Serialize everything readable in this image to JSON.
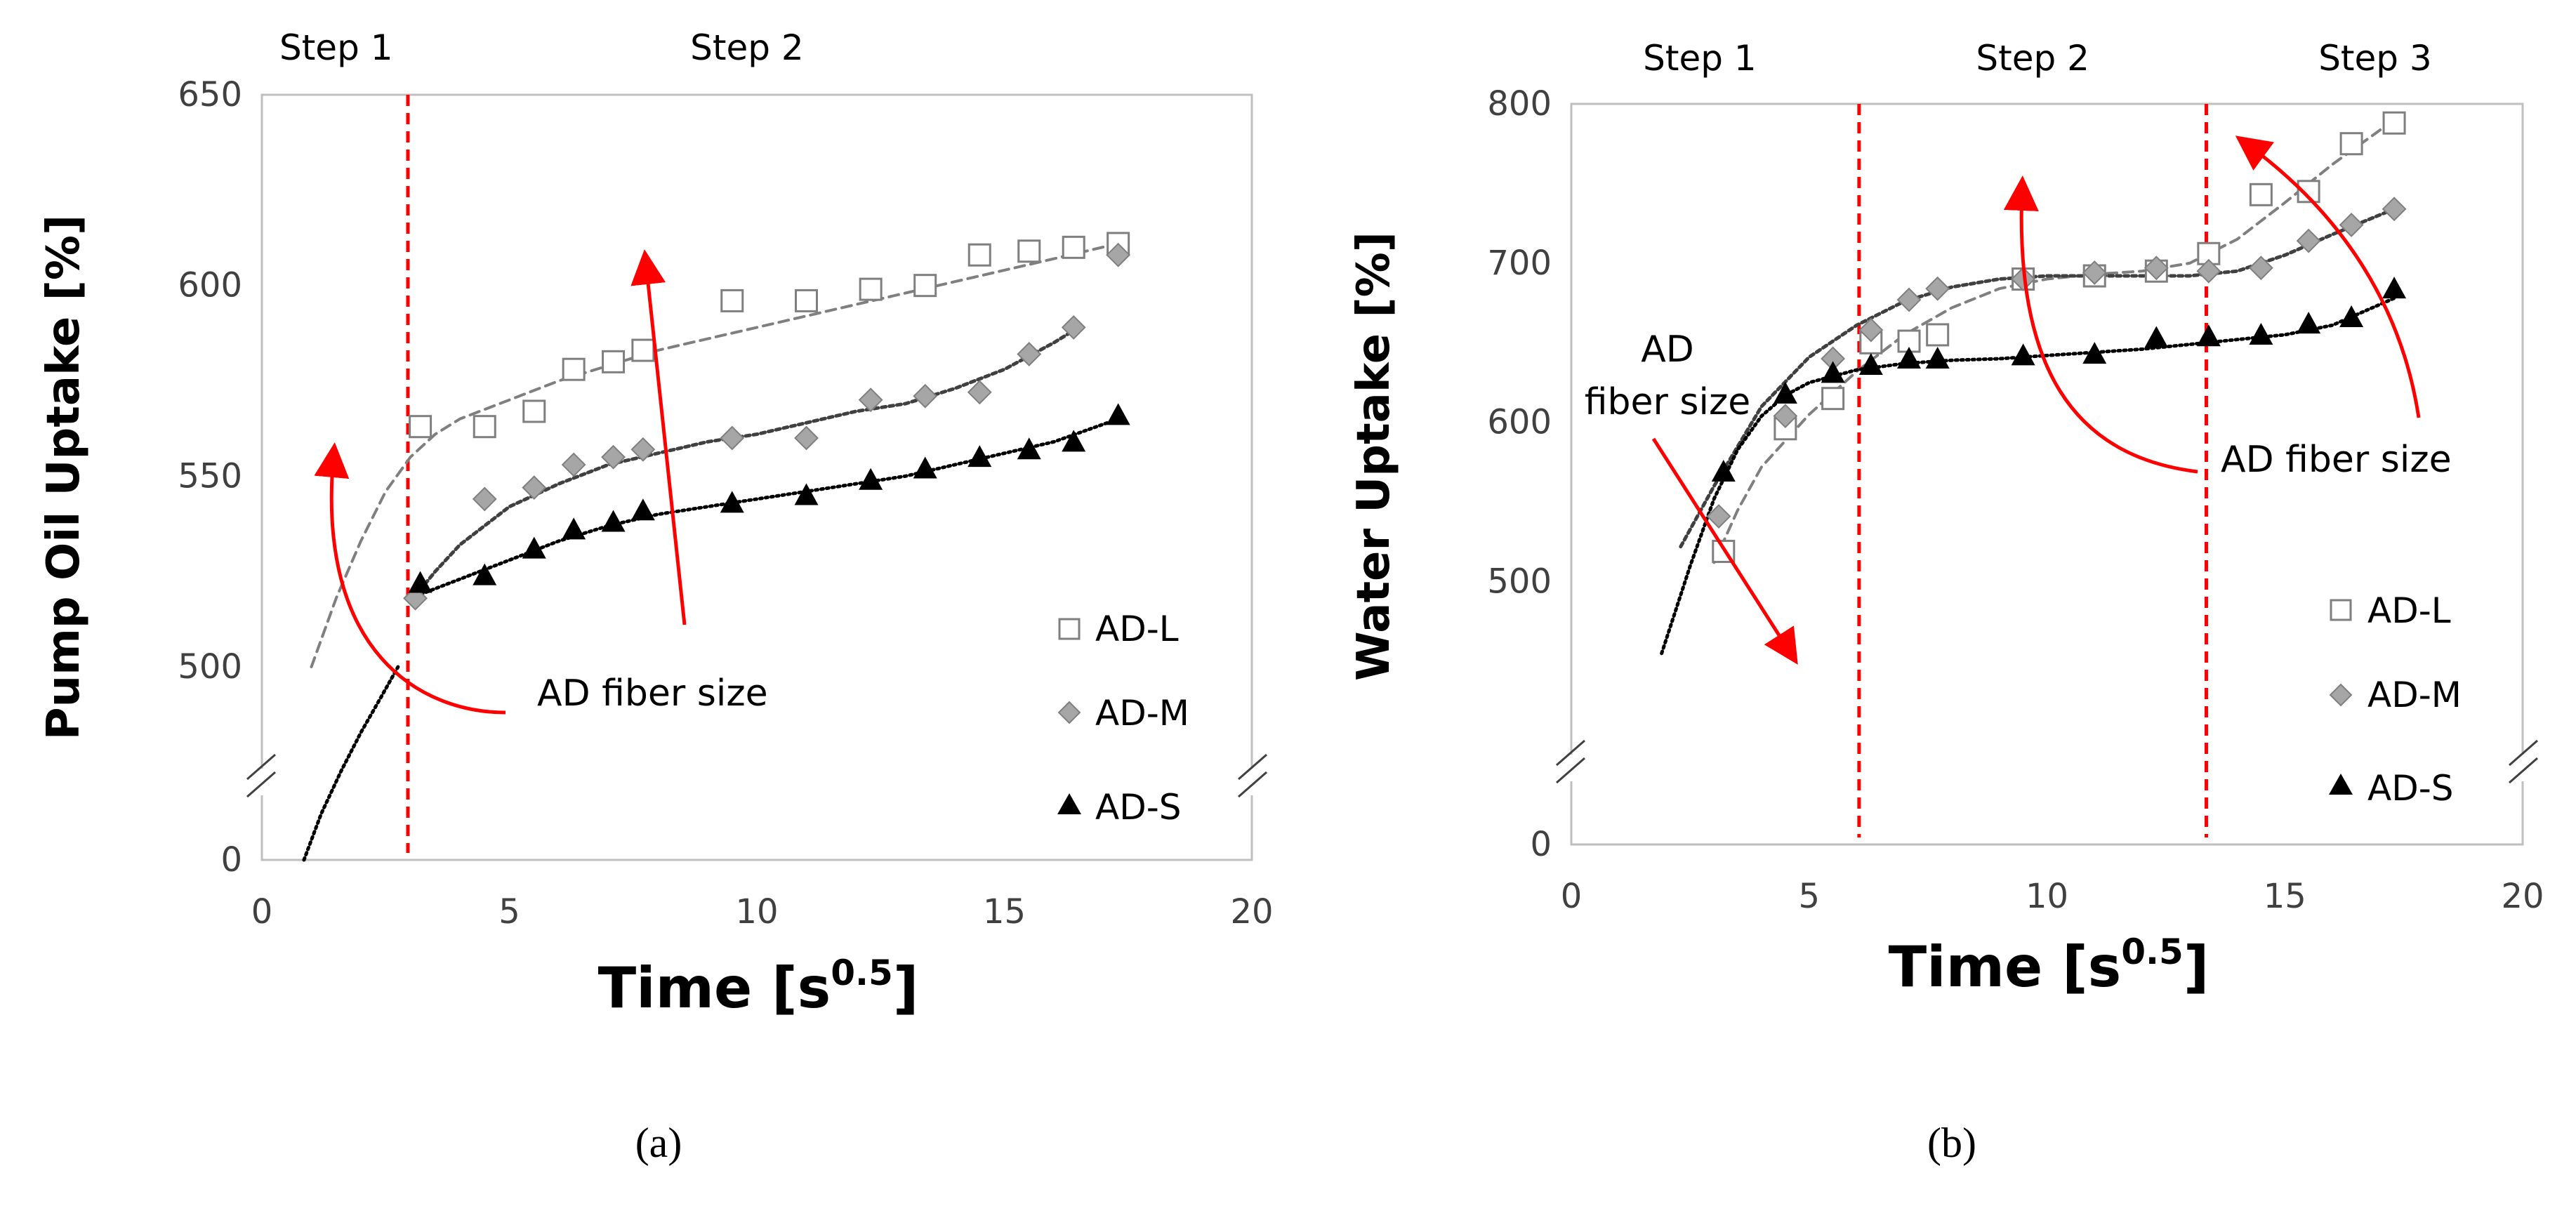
{
  "chart_data": [
    {
      "type": "scatter",
      "panel_label": "(a)",
      "xlabel": "Time [s",
      "xlabel_sup": "0.5",
      "xlabel_close": "]",
      "ylabel": "Pump Oil Uptake [%]",
      "xlim": [
        0,
        20
      ],
      "x_ticks": [
        0,
        5,
        10,
        15,
        20
      ],
      "y_ticks": [
        500,
        550,
        600,
        650
      ],
      "y_zero_label": 0,
      "ylim": [
        500,
        650
      ],
      "y_break_low": 0,
      "steps": [
        "Step 1",
        "Step 2"
      ],
      "step_label_x": [
        1.5,
        9.8
      ],
      "step_lines_x": [
        2.95
      ],
      "annotation": "AD fiber size",
      "annotation_x": 5.5,
      "annotation_y": 495,
      "series": [
        {
          "name": "AD-L",
          "marker": "square-open",
          "x": [
            3.2,
            4.5,
            5.5,
            6.3,
            7.1,
            7.7,
            9.5,
            11.0,
            12.3,
            13.4,
            14.5,
            15.5,
            16.4,
            17.3
          ],
          "values": [
            563,
            563,
            567,
            578,
            580,
            583,
            596,
            596,
            599,
            600,
            608,
            609,
            610,
            611
          ],
          "fit_x": [
            1.0,
            1.5,
            2.0,
            2.5,
            3.0,
            3.5,
            4.0,
            5.0,
            6.0,
            7.0,
            8.0,
            9.0,
            10.0,
            11.0,
            12.0,
            13.0,
            14.0,
            15.0,
            16.0,
            17.3
          ],
          "fit_y": [
            500,
            518,
            533,
            546,
            555,
            561,
            565,
            570,
            575,
            579,
            583,
            586,
            589,
            592,
            595,
            598,
            601,
            604,
            607,
            611
          ]
        },
        {
          "name": "AD-M",
          "marker": "diamond-filled",
          "x": [
            3.1,
            4.5,
            5.5,
            6.3,
            7.1,
            7.7,
            9.5,
            11.0,
            12.3,
            13.4,
            14.5,
            15.5,
            16.4,
            17.3
          ],
          "values": [
            518,
            544,
            547,
            553,
            555,
            557,
            560,
            560,
            570,
            571,
            572,
            582,
            589,
            608
          ],
          "fit_x": [
            3.0,
            3.5,
            4.0,
            5.0,
            6.0,
            7.0,
            8.0,
            9.0,
            10.0,
            11.0,
            12.0,
            13.0,
            14.0,
            15.0,
            16.0,
            16.5
          ],
          "fit_y": [
            517,
            525,
            532,
            542,
            548,
            553,
            556,
            559,
            561,
            564,
            567,
            569,
            573,
            578,
            585,
            589
          ]
        },
        {
          "name": "AD-S",
          "marker": "triangle-filled",
          "x": [
            3.2,
            4.5,
            5.5,
            6.3,
            7.1,
            7.7,
            9.5,
            11.0,
            12.3,
            13.4,
            14.5,
            15.5,
            16.4,
            17.3
          ],
          "values": [
            522,
            524,
            531,
            536,
            538,
            541,
            543,
            545,
            549,
            552,
            555,
            557,
            559,
            566
          ],
          "fit_x": [
            3.0,
            4.0,
            5.0,
            6.0,
            7.0,
            8.0,
            9.0,
            10.0,
            11.0,
            12.0,
            13.0,
            14.0,
            15.0,
            16.0,
            17.3
          ],
          "fit_y": [
            518,
            523,
            528,
            533,
            537,
            540,
            542,
            544,
            546,
            548,
            550,
            553,
            556,
            559,
            565
          ]
        }
      ],
      "below_break_fit_x": [
        0.85,
        1.2,
        1.6,
        2.0,
        2.4,
        2.75
      ],
      "below_break_fit_y": [
        0,
        120,
        230,
        330,
        420,
        500
      ]
    },
    {
      "type": "scatter",
      "panel_label": "(b)",
      "xlabel": "Time [s",
      "xlabel_sup": "0.5",
      "xlabel_close": "]",
      "ylabel": "Water Uptake [%]",
      "xlim": [
        0,
        20
      ],
      "x_ticks": [
        0,
        5,
        10,
        15,
        20
      ],
      "y_ticks": [
        500,
        600,
        700,
        800
      ],
      "y_zero_label": 0,
      "ylim": [
        450,
        800
      ],
      "y_break_low": 0,
      "steps": [
        "Step 1",
        "Step 2",
        "Step 3"
      ],
      "step_label_x": [
        2.7,
        9.7,
        16.9
      ],
      "step_lines_x": [
        6.05,
        13.35
      ],
      "annotation": "AD fiber size",
      "annotation_2_line1": "AD",
      "annotation_2_line2": "fiber size",
      "series": [
        {
          "name": "AD-L",
          "marker": "square-open",
          "x": [
            3.2,
            4.5,
            5.5,
            6.3,
            7.1,
            7.7,
            9.5,
            11.0,
            12.3,
            13.4,
            14.5,
            15.5,
            16.4,
            17.3
          ],
          "values": [
            519,
            596,
            615,
            650,
            651,
            655,
            690,
            692,
            695,
            706,
            743,
            745,
            775,
            788
          ],
          "fit_x": [
            3.0,
            3.5,
            4.0,
            5.0,
            6.0,
            7.0,
            8.0,
            9.0,
            10.0,
            11.0,
            12.0,
            13.0,
            14.0,
            15.0,
            16.0,
            17.3
          ],
          "fit_y": [
            512,
            545,
            572,
            605,
            632,
            655,
            672,
            684,
            690,
            693,
            695,
            700,
            715,
            738,
            762,
            790
          ]
        },
        {
          "name": "AD-M",
          "marker": "diamond-filled",
          "x": [
            3.1,
            4.5,
            5.5,
            6.3,
            7.1,
            7.7,
            9.5,
            11.0,
            12.3,
            13.4,
            14.5,
            15.5,
            16.4,
            17.3
          ],
          "values": [
            541,
            604,
            640,
            658,
            677,
            684,
            690,
            694,
            697,
            695,
            697,
            714,
            724,
            734
          ],
          "fit_x": [
            2.3,
            3.0,
            4.0,
            5.0,
            6.0,
            7.0,
            8.0,
            9.0,
            10.0,
            11.0,
            12.0,
            13.0,
            14.0,
            15.0,
            16.0,
            17.3
          ],
          "fit_y": [
            522,
            560,
            610,
            641,
            661,
            676,
            685,
            690,
            692,
            692,
            692,
            692,
            695,
            705,
            718,
            734
          ]
        },
        {
          "name": "AD-S",
          "marker": "triangle-filled",
          "x": [
            3.2,
            4.5,
            5.5,
            6.3,
            7.1,
            7.7,
            9.5,
            11.0,
            12.3,
            13.4,
            14.5,
            15.5,
            16.4,
            17.3
          ],
          "values": [
            569,
            618,
            631,
            636,
            640,
            640,
            642,
            643,
            653,
            654,
            655,
            662,
            666,
            684
          ],
          "fit_x": [
            1.9,
            2.5,
            3.0,
            3.5,
            4.0,
            4.5,
            5.0,
            6.0,
            7.0,
            8.0,
            9.0,
            10.0,
            11.0,
            12.0,
            13.0,
            14.0,
            15.0,
            16.0,
            17.3
          ],
          "fit_y": [
            455,
            510,
            552,
            583,
            604,
            617,
            625,
            633,
            637,
            639,
            640,
            642,
            644,
            646,
            649,
            652,
            655,
            661,
            678
          ]
        }
      ]
    }
  ]
}
